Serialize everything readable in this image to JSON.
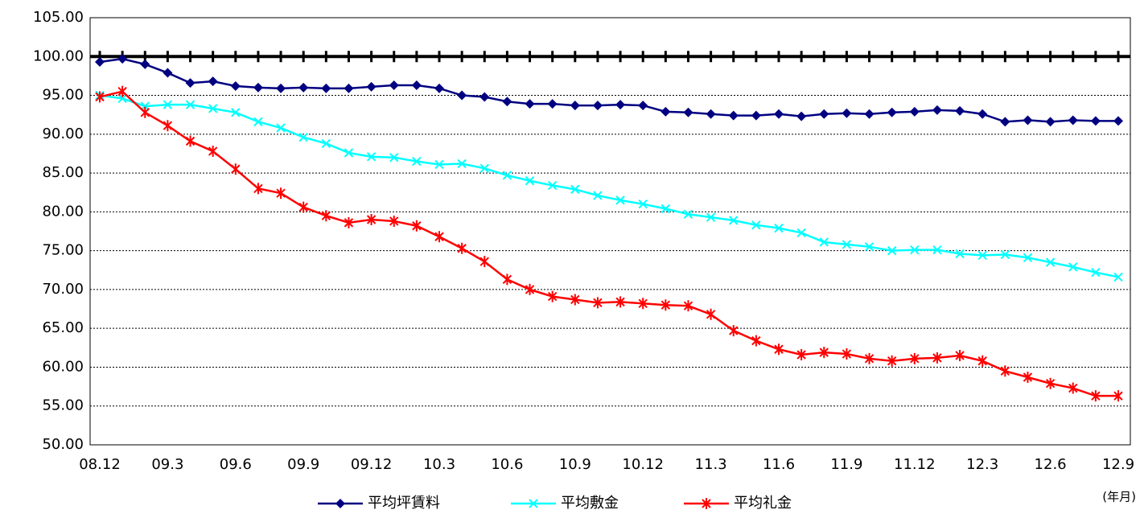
{
  "chart_data": {
    "type": "line",
    "categories": [
      "08.12",
      null,
      null,
      "09.3",
      null,
      null,
      "09.6",
      null,
      null,
      "09.9",
      null,
      null,
      "09.12",
      null,
      null,
      "10.3",
      null,
      null,
      "10.6",
      null,
      null,
      "10.9",
      null,
      null,
      "10.12",
      null,
      null,
      "11.3",
      null,
      null,
      "11.6",
      null,
      null,
      "11.9",
      null,
      null,
      "11.12",
      null,
      null,
      "12.3",
      null,
      null,
      "12.6",
      null,
      null,
      "12.9"
    ],
    "series": [
      {
        "name": "平均坪賃料",
        "color": "#000080",
        "marker": "diamond",
        "values": [
          99.3,
          99.7,
          99.0,
          97.9,
          96.6,
          96.8,
          96.2,
          96.0,
          95.9,
          96.0,
          95.9,
          95.9,
          96.1,
          96.3,
          96.3,
          95.9,
          95.0,
          94.8,
          94.2,
          93.9,
          93.9,
          93.7,
          93.7,
          93.8,
          93.7,
          92.9,
          92.8,
          92.6,
          92.4,
          92.4,
          92.6,
          92.3,
          92.6,
          92.7,
          92.6,
          92.8,
          92.9,
          93.1,
          93.0,
          92.6,
          91.6,
          91.8,
          91.6,
          91.8,
          91.7,
          91.7
        ]
      },
      {
        "name": "平均敷金",
        "color": "#00ffff",
        "marker": "x",
        "values": [
          95.0,
          94.6,
          93.6,
          93.8,
          93.8,
          93.3,
          92.8,
          91.6,
          90.8,
          89.6,
          88.8,
          87.6,
          87.1,
          87.0,
          86.5,
          86.1,
          86.2,
          85.6,
          84.7,
          84.0,
          83.4,
          82.9,
          82.1,
          81.5,
          81.0,
          80.4,
          79.7,
          79.3,
          78.9,
          78.3,
          77.9,
          77.3,
          76.1,
          75.8,
          75.5,
          75.0,
          75.1,
          75.1,
          74.6,
          74.4,
          74.5,
          74.1,
          73.5,
          72.9,
          72.2,
          71.6
        ]
      },
      {
        "name": "平均礼金",
        "color": "#ff0000",
        "marker": "asterisk",
        "values": [
          94.8,
          95.5,
          92.8,
          91.1,
          89.1,
          87.8,
          85.5,
          83.0,
          82.4,
          80.6,
          79.5,
          78.6,
          79.0,
          78.8,
          78.2,
          76.8,
          75.3,
          73.6,
          71.3,
          70.0,
          69.1,
          68.7,
          68.3,
          68.4,
          68.2,
          68.0,
          67.9,
          66.8,
          64.7,
          63.4,
          62.3,
          61.6,
          61.9,
          61.7,
          61.1,
          60.8,
          61.1,
          61.2,
          61.5,
          60.8,
          59.5,
          58.7,
          57.9,
          57.3,
          56.3,
          56.3
        ]
      }
    ],
    "reference": {
      "value": 100,
      "color": "#000000"
    },
    "ylim": [
      50,
      105
    ],
    "yticks": [
      {
        "value": 50,
        "label": "50.00"
      },
      {
        "value": 55,
        "label": "55.00"
      },
      {
        "value": 60,
        "label": "60.00"
      },
      {
        "value": 65,
        "label": "65.00"
      },
      {
        "value": 70,
        "label": "70.00"
      },
      {
        "value": 75,
        "label": "75.00"
      },
      {
        "value": 80,
        "label": "80.00"
      },
      {
        "value": 85,
        "label": "85.00"
      },
      {
        "value": 90,
        "label": "90.00"
      },
      {
        "value": 95,
        "label": "95.00"
      },
      {
        "value": 100,
        "label": "100.00"
      },
      {
        "value": 105,
        "label": "105.00"
      }
    ],
    "grid": true,
    "x_unit_label": "(年月)",
    "legend": "bottom"
  }
}
